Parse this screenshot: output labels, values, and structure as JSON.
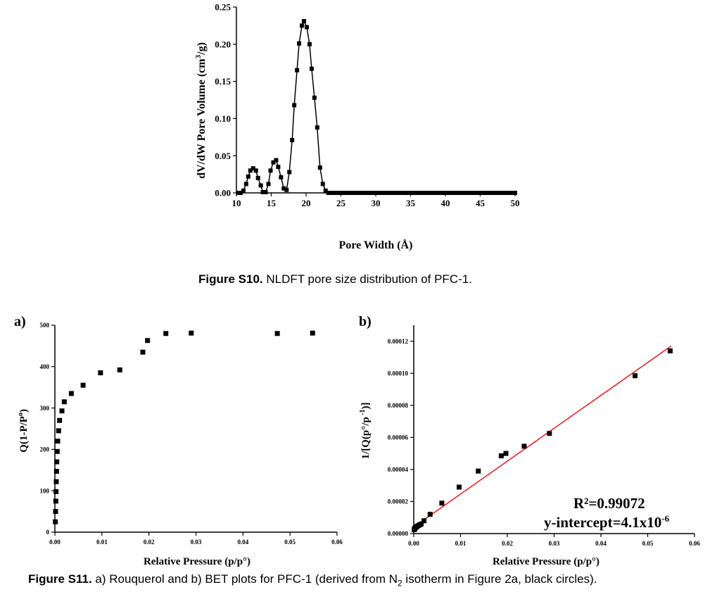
{
  "figures": {
    "s10": {
      "label": "Figure S10.",
      "text": " NLDFT pore size distribution of PFC-1."
    },
    "s11": {
      "label": "Figure S11.",
      "text_before": " a) Rouquerol and b) BET plots for PFC-1 (derived from N",
      "subscript": "2",
      "text_after": " isotherm in Figure 2a, black circles)."
    }
  },
  "chart_data": [
    {
      "id": "pore-size",
      "type": "line",
      "title": "",
      "xlabel": "Pore Width (Å)",
      "ylabel_pre": "dV/dW Pore Volume (cm",
      "ylabel_sup": "3",
      "ylabel_post": "/g)",
      "xlim": [
        10,
        50
      ],
      "ylim": [
        0,
        0.25
      ],
      "xticks": [
        10,
        15,
        20,
        25,
        30,
        35,
        40,
        45,
        50
      ],
      "yticks": [
        0.0,
        0.05,
        0.1,
        0.15,
        0.2,
        0.25
      ],
      "ytick_labels": [
        "0.00",
        "0.05",
        "0.10",
        "0.15",
        "0.20",
        "0.25"
      ],
      "color": "#000000",
      "series": [
        {
          "x": [
            10.3,
            10.6,
            11.0,
            11.4,
            11.7,
            12.0,
            12.4,
            12.8,
            13.1,
            13.5,
            13.8,
            14.2,
            14.6,
            14.9,
            15.3,
            15.7,
            16.0,
            16.4,
            16.8,
            17.2,
            17.6,
            18.0,
            18.3,
            18.7,
            19.0,
            19.4,
            19.7,
            20.1,
            20.5,
            20.8,
            21.2,
            21.6,
            22.0,
            22.4,
            22.8,
            23.2,
            23.6,
            24.0,
            24.5,
            25.0,
            25.5,
            26.0,
            26.5,
            27.0,
            27.5,
            28.0,
            28.5,
            29.0,
            29.5,
            30.0,
            30.5,
            31.0,
            31.5,
            32.0,
            32.5,
            33.0,
            33.5,
            34.0,
            34.5,
            35.0,
            35.5,
            36.0,
            36.5,
            37.0,
            37.5,
            38.0,
            38.5,
            39.0,
            39.5,
            40.0,
            40.5,
            41.0,
            41.5,
            42.0,
            42.5,
            43.0,
            43.5,
            44.0,
            44.5,
            45.0,
            45.5,
            46.0,
            46.5,
            47.0,
            47.5,
            48.0,
            48.5,
            49.0,
            49.5,
            50.0
          ],
          "y": [
            0.0,
            0.0,
            0.003,
            0.012,
            0.022,
            0.03,
            0.033,
            0.03,
            0.02,
            0.01,
            0.001,
            0.001,
            0.012,
            0.03,
            0.041,
            0.044,
            0.035,
            0.021,
            0.006,
            0.004,
            0.028,
            0.071,
            0.118,
            0.165,
            0.201,
            0.225,
            0.231,
            0.223,
            0.2,
            0.167,
            0.128,
            0.088,
            0.034,
            0.012,
            0.003,
            0.0,
            0.0,
            0.0,
            0.0,
            0.0,
            0.0,
            0.0,
            0.0,
            0.0,
            0.0,
            0.0,
            0.0,
            0.0,
            0.0,
            0.0,
            0.0,
            0.0,
            0.0,
            0.0,
            0.0,
            0.0,
            0.0,
            0.0,
            0.0,
            0.0,
            0.0,
            0.0,
            0.0,
            0.0,
            0.0,
            0.0,
            0.0,
            0.0,
            0.0,
            0.0,
            0.0,
            0.0,
            0.0,
            0.0,
            0.0,
            0.0,
            0.0,
            0.0,
            0.0,
            0.0,
            0.0,
            0.0,
            0.0,
            0.0,
            0.0,
            0.0,
            0.0,
            0.0,
            0.0,
            0.0
          ]
        }
      ]
    },
    {
      "id": "rouquerol",
      "panel": "a)",
      "type": "scatter",
      "xlabel": "Relative Pressure (p/p°)",
      "ylabel_pre": "Q(1-P/P",
      "ylabel_sup": "o",
      "ylabel_post": ")",
      "xlim": [
        0,
        0.06
      ],
      "ylim": [
        0,
        500
      ],
      "xticks": [
        0,
        0.01,
        0.02,
        0.03,
        0.04,
        0.05,
        0.06
      ],
      "xtick_labels": [
        "0.00",
        "0.01",
        "0.02",
        "0.03",
        "0.04",
        "0.05",
        "0.06"
      ],
      "yticks": [
        0,
        100,
        200,
        300,
        400,
        500
      ],
      "ytick_labels": [
        "0",
        "100",
        "200",
        "300",
        "400",
        "500"
      ],
      "color": "#000000",
      "series": [
        {
          "x": [
            0.0001,
            0.00015,
            0.0002,
            0.00025,
            0.0003,
            0.00035,
            0.0004,
            0.0005,
            0.0006,
            0.0008,
            0.001,
            0.0015,
            0.002,
            0.0035,
            0.006,
            0.0097,
            0.0138,
            0.0187,
            0.0197,
            0.0236,
            0.029,
            0.0473,
            0.0548
          ],
          "y": [
            25,
            50,
            75,
            98,
            122,
            147,
            170,
            195,
            220,
            245,
            270,
            293,
            315,
            335,
            355,
            385,
            392,
            435,
            463,
            480,
            481,
            480,
            481
          ]
        }
      ]
    },
    {
      "id": "bet",
      "panel": "b)",
      "type": "scatter",
      "xlabel": "Relative Pressure (p/p°)",
      "ylabel_pre": "1/[Q(p°/p",
      "ylabel_sup": " -1",
      "ylabel_post": ")]",
      "xlim": [
        0,
        0.06
      ],
      "ylim": [
        0,
        0.00013
      ],
      "xticks": [
        0,
        0.01,
        0.02,
        0.03,
        0.04,
        0.05,
        0.06
      ],
      "xtick_labels": [
        "0.00",
        "0.01",
        "0.02",
        "0.03",
        "0.04",
        "0.05",
        "0.06"
      ],
      "yticks": [
        0,
        2e-05,
        4e-05,
        6e-05,
        8e-05,
        0.0001,
        0.00012
      ],
      "ytick_labels": [
        "0.00000",
        "0.00002",
        "0.00004",
        "0.00006",
        "0.00008",
        "0.00010",
        "0.00012"
      ],
      "color": "#000000",
      "fit_color": "#e8141c",
      "fit": {
        "x0": 0.0,
        "y0": 4.1e-06,
        "x1": 0.055,
        "y1": 0.000117
      },
      "r2_label": "R²=0.99072",
      "intercept_label_pre": "y-intercept=4.1x10",
      "intercept_label_sup": "-6",
      "series": [
        {
          "x": [
            0.0001,
            0.0002,
            0.0003,
            0.0005,
            0.0007,
            0.001,
            0.0013,
            0.0016,
            0.0022,
            0.0035,
            0.006,
            0.0097,
            0.0138,
            0.0187,
            0.0197,
            0.0236,
            0.029,
            0.0473,
            0.0548
          ],
          "y": [
            2.5e-06,
            3e-06,
            3.5e-06,
            4e-06,
            4.5e-06,
            5e-06,
            5.5e-06,
            6e-06,
            8e-06,
            1.2e-05,
            1.9e-05,
            2.9e-05,
            3.9e-05,
            4.85e-05,
            5e-05,
            5.45e-05,
            6.25e-05,
            9.85e-05,
            0.000114
          ]
        }
      ]
    }
  ]
}
